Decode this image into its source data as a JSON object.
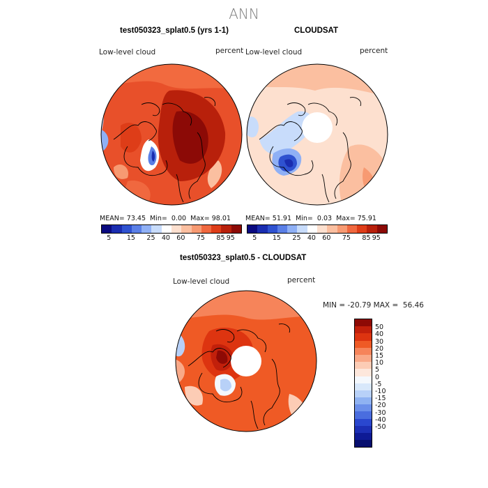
{
  "figure": {
    "title": "ANN",
    "variable": "Low-level cloud",
    "units": "percent"
  },
  "panel_model": {
    "title": "test050323_splat0.5 (yrs 1-1)",
    "variable": "Low-level cloud",
    "units": "percent",
    "mean_label": "MEAN=",
    "mean": "73.45",
    "min_label": "Min=",
    "min": "0.00",
    "max_label": "Max=",
    "max": "98.01"
  },
  "panel_obs": {
    "title": "CLOUDSAT",
    "variable": "Low-level cloud",
    "units": "percent",
    "mean_label": "MEAN=",
    "mean": "51.91",
    "min_label": "Min=",
    "min": "0.03",
    "max_label": "Max=",
    "max": "75.91"
  },
  "panel_diff": {
    "title": "test050323_splat0.5 - CLOUDSAT",
    "variable": "Low-level cloud",
    "units": "percent",
    "minmax_text": "MIN = -20.79 MAX =  56.46"
  },
  "abs_colorbar": {
    "colors": [
      "#0a0a80",
      "#1a2db0",
      "#2f52d0",
      "#5a7fe6",
      "#8fb0f5",
      "#c8dcfb",
      "#ffffff",
      "#fde0cf",
      "#fbbfa0",
      "#f79a72",
      "#f0683f",
      "#de3d18",
      "#b8200b",
      "#8c0a06"
    ],
    "tick_labels": [
      "5",
      "15",
      "25",
      "40",
      "60",
      "75",
      "85",
      "95"
    ]
  },
  "diff_colorbar": {
    "colors": [
      "#8e0a05",
      "#c2200b",
      "#dd3410",
      "#ef5a25",
      "#f6845a",
      "#f9a988",
      "#fcccb5",
      "#fde7dc",
      "#f4f8fd",
      "#d8e8fb",
      "#b8d1f8",
      "#8fb2f2",
      "#6b8fea",
      "#4a6ddf",
      "#2a47cf",
      "#1c2fb5",
      "#0e1a95",
      "#070f6e"
    ],
    "tick_labels": [
      "50",
      "40",
      "30",
      "20",
      "15",
      "10",
      "5",
      "0",
      "-5",
      "-10",
      "-15",
      "-20",
      "-30",
      "-40",
      "-50"
    ]
  },
  "chart_data": {
    "type": "polar-map",
    "title": "ANN",
    "projection": "North polar stereographic",
    "field": "Low-level cloud (percent)",
    "panels": [
      {
        "name": "test050323_splat0.5 (yrs 1-1)",
        "mean": 73.45,
        "min": 0.0,
        "max": 98.01,
        "levels": [
          5,
          15,
          25,
          40,
          60,
          75,
          85,
          95
        ]
      },
      {
        "name": "CLOUDSAT",
        "mean": 51.91,
        "min": 0.03,
        "max": 75.91,
        "levels": [
          5,
          15,
          25,
          40,
          60,
          75,
          85,
          95
        ]
      },
      {
        "name": "test050323_splat0.5 - CLOUDSAT",
        "min": -20.79,
        "max": 56.46,
        "levels": [
          -50,
          -40,
          -30,
          -20,
          -15,
          -10,
          -5,
          0,
          5,
          10,
          15,
          20,
          30,
          40,
          50
        ]
      }
    ]
  }
}
